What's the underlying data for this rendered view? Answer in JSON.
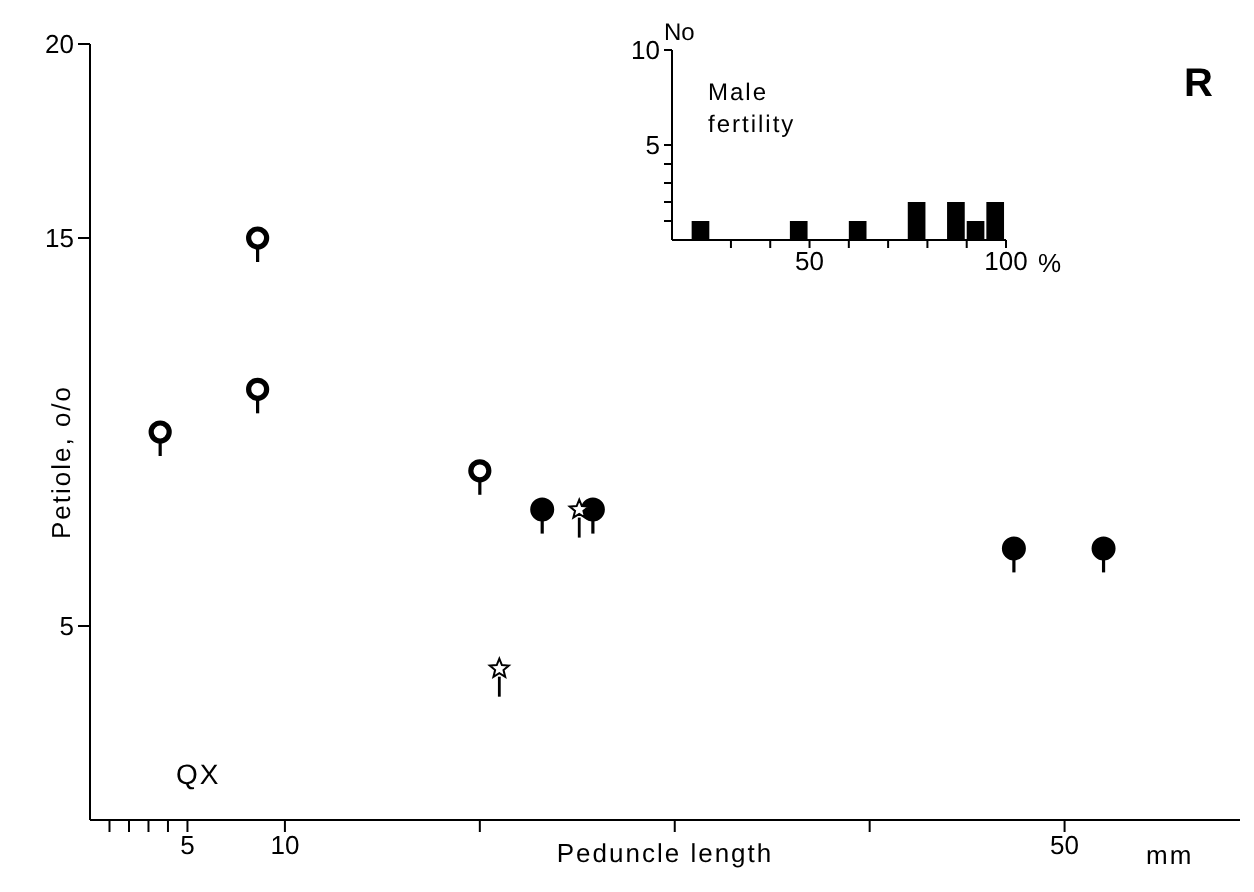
{
  "chart_data": [
    {
      "type": "scatter",
      "xlabel": "Peduncle length",
      "ylabel": "Petiole, o/o",
      "annotations": [
        "QX",
        "R",
        "mm"
      ],
      "xlim": [
        0,
        59
      ],
      "xticks": [
        {
          "value": 1,
          "label": null
        },
        {
          "value": 2,
          "label": null
        },
        {
          "value": 3,
          "label": null
        },
        {
          "value": 4,
          "label": null
        },
        5,
        10,
        {
          "value": 20,
          "label": null
        },
        {
          "value": 30,
          "label": null
        },
        {
          "value": 40,
          "label": null
        },
        50
      ],
      "ylim": [
        0,
        20
      ],
      "yticks": [
        5,
        15,
        20
      ],
      "series": [
        {
          "color": "#000000",
          "marker": "circle",
          "x": [
            3.6,
            8.6,
            8.6,
            20.0
          ],
          "values": [
            10.0,
            15.0,
            11.1,
            9.0
          ]
        },
        {
          "color": "#000000",
          "marker": "circle",
          "x": [
            23.2,
            25.8,
            47.4,
            52.0
          ],
          "values": [
            8.0,
            8.0,
            7.0,
            7.0
          ]
        },
        {
          "color": "#000000",
          "marker": "star",
          "x": [
            21.0,
            25.1
          ],
          "values": [
            3.9,
            8.0
          ]
        }
      ]
    },
    {
      "type": "histogram",
      "title": "Male fertility",
      "xlabel": "%",
      "ylabel": "No",
      "color": "#000000",
      "bins": [
        20,
        25,
        30,
        35,
        40,
        45,
        50,
        55,
        60,
        65,
        70,
        75,
        80,
        85,
        90,
        95,
        100
      ],
      "values": [
        1,
        0,
        0,
        0,
        0,
        1,
        0,
        0,
        1,
        0,
        0,
        2,
        0,
        2,
        1,
        2
      ],
      "xlim": [
        15,
        100
      ],
      "xticks": [
        {
          "value": 30,
          "label": null
        },
        {
          "value": 40,
          "label": null
        },
        50,
        {
          "value": 60,
          "label": null
        },
        {
          "value": 70,
          "label": null
        },
        {
          "value": 80,
          "label": null
        },
        {
          "value": 90,
          "label": null
        },
        100
      ],
      "ylim": [
        0,
        10
      ],
      "yticks": [
        {
          "value": 1,
          "label": null
        },
        {
          "value": 2,
          "label": null
        },
        {
          "value": 3,
          "label": null
        },
        {
          "value": 4,
          "label": null
        },
        5,
        10
      ]
    }
  ]
}
